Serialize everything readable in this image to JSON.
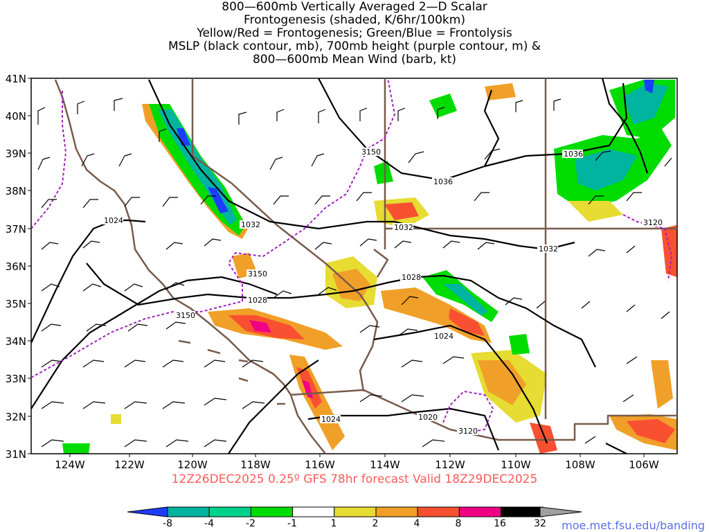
{
  "title_lines": [
    "800—600mb Vertically Averaged 2—D Scalar",
    "Frontogenesis (shaded, K/6hr/100km)",
    "Yellow/Red = Frontogenesis;  Green/Blue = Frontolysis",
    "MSLP (black contour, mb), 700mb height (purple contour, m) &",
    "800—600mb Mean Wind (barb, kt)"
  ],
  "lat_labels": [
    "41N",
    "40N",
    "39N",
    "38N",
    "37N",
    "36N",
    "35N",
    "34N",
    "33N",
    "32N",
    "31N"
  ],
  "lon_labels": [
    "124W",
    "122W",
    "120W",
    "118W",
    "116W",
    "114W",
    "112W",
    "110W",
    "108W",
    "106W"
  ],
  "mslp_labels": [
    "1024",
    "1032",
    "1032",
    "1028",
    "1028",
    "1036",
    "1036",
    "1032",
    "1024",
    "1024",
    "1020"
  ],
  "height_labels": [
    "3150",
    "3150",
    "3150",
    "3120",
    "3120"
  ],
  "valid_text": "12Z26DEC2025 0.25º GFS 78hr forecast Valid 18Z29DEC2025",
  "colorbar": {
    "colors": [
      "#1e3cff",
      "#00b4a0",
      "#00d28c",
      "#00dc00",
      "#ffffff",
      "#e6dc32",
      "#f0a028",
      "#fa5032",
      "#f00082",
      "#000000",
      "#a0a0a0"
    ],
    "ticks": [
      "-8",
      "-4",
      "-2",
      "-1",
      "1",
      "2",
      "4",
      "8",
      "16",
      "32"
    ]
  },
  "footer_url": "moe.met.fsu.edu/banding",
  "colors": {
    "state_border": "#785a4a",
    "mslp": "#000000",
    "height": "#a020c0",
    "valid_text": "#ff5a5a"
  }
}
